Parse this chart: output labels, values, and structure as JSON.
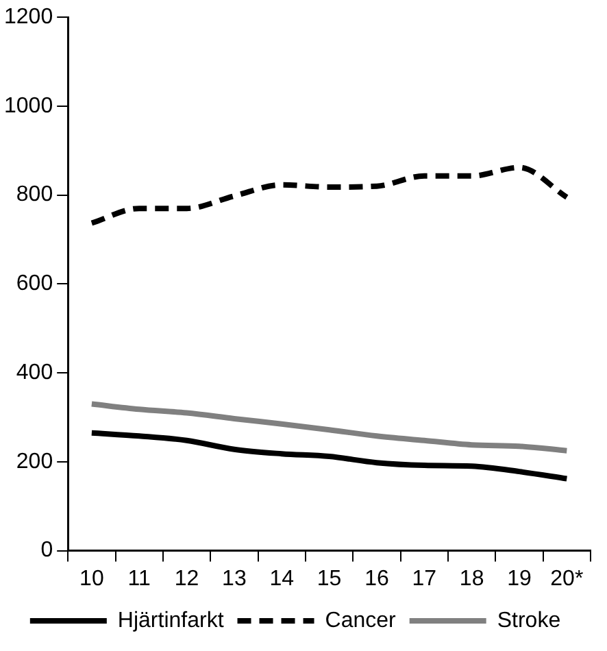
{
  "chart_data": {
    "type": "line",
    "categories": [
      "10",
      "11",
      "12",
      "13",
      "14",
      "15",
      "16",
      "17",
      "18",
      "19",
      "20*"
    ],
    "series": [
      {
        "name": "Hjärtinfarkt",
        "color": "#000000",
        "line_style": "solid",
        "values": [
          265,
          258,
          248,
          228,
          218,
          212,
          198,
          192,
          190,
          178,
          162
        ]
      },
      {
        "name": "Cancer",
        "color": "#000000",
        "line_style": "dashed",
        "values": [
          737,
          770,
          770,
          798,
          823,
          818,
          820,
          843,
          843,
          862,
          795
        ]
      },
      {
        "name": "Stroke",
        "color": "#808080",
        "line_style": "solid",
        "values": [
          330,
          318,
          310,
          297,
          285,
          272,
          258,
          248,
          238,
          235,
          225
        ]
      }
    ],
    "ylim": [
      0,
      1200
    ],
    "yticks": [
      0,
      200,
      400,
      600,
      800,
      1000,
      1200
    ],
    "grid": false,
    "legend": "bottom",
    "marker": "none"
  }
}
